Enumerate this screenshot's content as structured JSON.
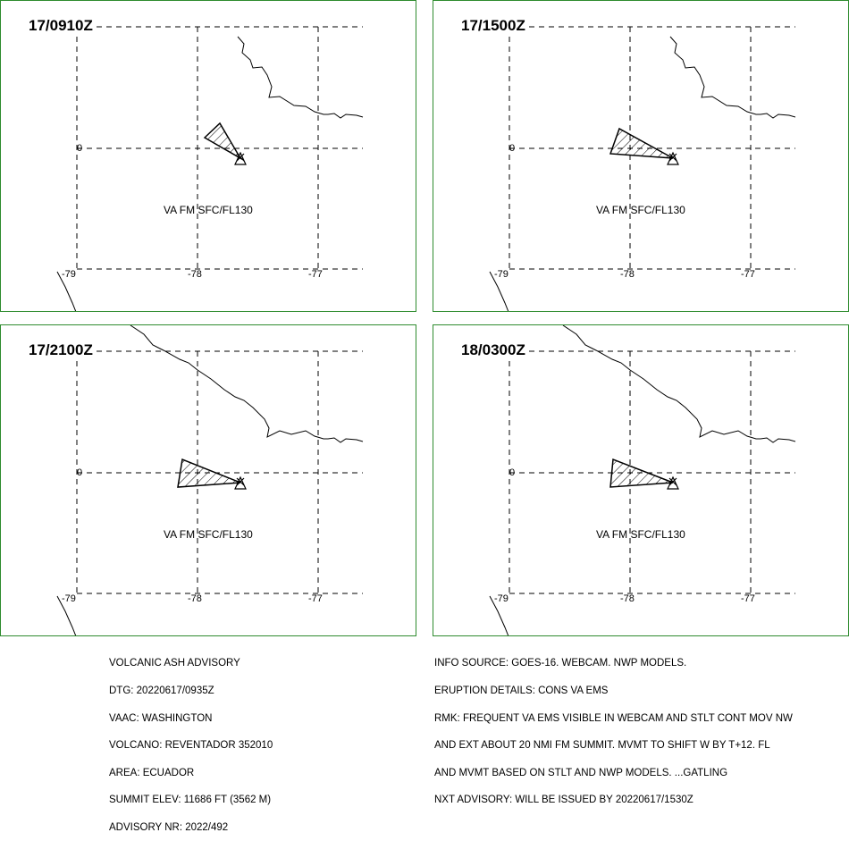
{
  "panels": [
    {
      "time": "17/0910Z",
      "label": "VA FM SFC/FL130"
    },
    {
      "time": "17/1500Z",
      "label": "VA FM SFC/FL130"
    },
    {
      "time": "17/2100Z",
      "label": "VA FM SFC/FL130"
    },
    {
      "time": "18/0300Z",
      "label": "VA FM SFC/FL130"
    }
  ],
  "grid_labels": {
    "lat": "0",
    "lon_w": "-79",
    "lon_m": "-78",
    "lon_e": "-77"
  },
  "advisory_left": {
    "line1": "VOLCANIC ASH ADVISORY",
    "line2": "DTG: 20220617/0935Z",
    "line3": "VAAC: WASHINGTON",
    "line4": "VOLCANO: REVENTADOR 352010",
    "line5": "AREA: ECUADOR",
    "line6": "SUMMIT ELEV: 11686 FT (3562 M)",
    "line7": "ADVISORY NR: 2022/492"
  },
  "advisory_right": {
    "line1": "INFO SOURCE: GOES-16. WEBCAM. NWP MODELS.",
    "line2": "ERUPTION DETAILS: CONS VA EMS",
    "line3": "RMK: FREQUENT VA EMS VISIBLE IN WEBCAM AND STLT CONT MOV NW",
    "line4": "AND EXT ABOUT 20 NMI FM SUMMIT. MVMT TO SHIFT W BY T+12. FL",
    "line5": "AND MVMT BASED ON STLT AND NWP MODELS. ...GATLING",
    "line6": "NXT ADVISORY: WILL BE ISSUED BY 20220617/1530Z"
  },
  "colors": {
    "frame": "#2e8b2e",
    "lines": "#000000"
  }
}
